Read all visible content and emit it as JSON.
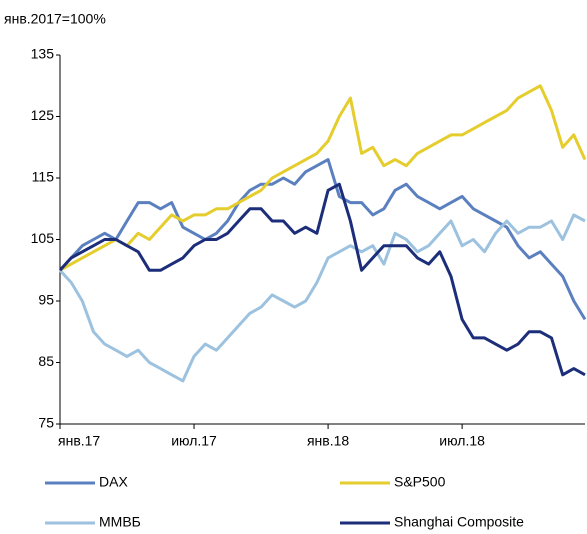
{
  "chart_data": {
    "type": "line",
    "y_label": "янв.2017=100%",
    "categories": [
      "янв.17",
      null,
      null,
      null,
      null,
      null,
      null,
      null,
      null,
      null,
      null,
      null,
      "июл.17",
      null,
      null,
      null,
      null,
      null,
      null,
      null,
      null,
      null,
      null,
      null,
      "янв.18",
      null,
      null,
      null,
      null,
      null,
      null,
      null,
      null,
      null,
      null,
      null,
      "июл.18",
      null,
      null,
      null,
      null,
      null,
      null,
      null,
      null,
      null,
      null,
      null
    ],
    "ylim": [
      75,
      135
    ],
    "yticks": [
      75,
      85,
      95,
      105,
      115,
      125,
      135
    ],
    "series": [
      {
        "name": "DAX",
        "color": "#5b80bf",
        "values": [
          100,
          102,
          104,
          105,
          106,
          105,
          108,
          111,
          111,
          110,
          111,
          107,
          106,
          105,
          106,
          108,
          111,
          113,
          114,
          114,
          115,
          114,
          116,
          117,
          118,
          112,
          111,
          111,
          109,
          110,
          113,
          114,
          112,
          111,
          110,
          111,
          112,
          110,
          109,
          108,
          107,
          104,
          102,
          103,
          101,
          99,
          95,
          92
        ]
      },
      {
        "name": "S&P500",
        "color": "#e5cd2d",
        "values": [
          100,
          101,
          102,
          103,
          104,
          105,
          104,
          106,
          105,
          107,
          109,
          108,
          109,
          109,
          110,
          110,
          111,
          112,
          113,
          115,
          116,
          117,
          118,
          119,
          121,
          125,
          128,
          119,
          120,
          117,
          118,
          117,
          119,
          120,
          121,
          122,
          122,
          123,
          124,
          125,
          126,
          128,
          129,
          130,
          126,
          120,
          122,
          118
        ]
      },
      {
        "name": "ММВБ",
        "color": "#9cc2df",
        "values": [
          100,
          98,
          95,
          90,
          88,
          87,
          86,
          87,
          85,
          84,
          83,
          82,
          86,
          88,
          87,
          89,
          91,
          93,
          94,
          96,
          95,
          94,
          95,
          98,
          102,
          103,
          104,
          103,
          104,
          101,
          106,
          105,
          103,
          104,
          106,
          108,
          104,
          105,
          103,
          106,
          108,
          106,
          107,
          107,
          108,
          105,
          109,
          108
        ]
      },
      {
        "name": "Shanghai Composite",
        "color": "#1c2e7a",
        "values": [
          100,
          102,
          103,
          104,
          105,
          105,
          104,
          103,
          100,
          100,
          101,
          102,
          104,
          105,
          105,
          106,
          108,
          110,
          110,
          108,
          108,
          106,
          107,
          106,
          113,
          114,
          108,
          100,
          102,
          104,
          104,
          104,
          102,
          101,
          103,
          99,
          92,
          89,
          89,
          88,
          87,
          88,
          90,
          90,
          89,
          83,
          84,
          83
        ]
      }
    ]
  }
}
